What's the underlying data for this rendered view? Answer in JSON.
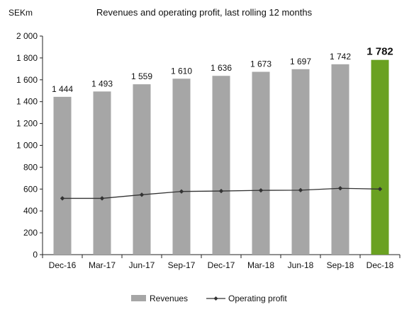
{
  "chart_data": {
    "type": "bar",
    "title": "Revenues and operating profit, last rolling 12 months",
    "ylabel": "SEKm",
    "xlabel": "",
    "ylim": [
      0,
      2000
    ],
    "yticks": [
      0,
      200,
      400,
      600,
      800,
      1000,
      1200,
      1400,
      1600,
      1800,
      2000
    ],
    "ytick_labels": [
      "0",
      "200",
      "400",
      "600",
      "800",
      "1 000",
      "1 200",
      "1 400",
      "1 600",
      "1 800",
      "2 000"
    ],
    "categories": [
      "Dec-16",
      "Mar-17",
      "Jun-17",
      "Sep-17",
      "Dec-17",
      "Mar-18",
      "Jun-18",
      "Sep-18",
      "Dec-18"
    ],
    "series": [
      {
        "name": "Revenues",
        "type": "bar",
        "values": [
          1444,
          1493,
          1559,
          1610,
          1636,
          1673,
          1697,
          1742,
          1782
        ],
        "labels": [
          "1 444",
          "1 493",
          "1 559",
          "1 610",
          "1 636",
          "1 673",
          "1 697",
          "1 742",
          "1 782"
        ],
        "color": "#a6a6a6",
        "highlight_color": "#6aa121",
        "highlight_index": 8
      },
      {
        "name": "Operating profit",
        "type": "line",
        "values": [
          515,
          515,
          548,
          578,
          582,
          588,
          590,
          607,
          600
        ],
        "color": "#333333"
      }
    ],
    "grid": false,
    "legend": "bottom"
  }
}
